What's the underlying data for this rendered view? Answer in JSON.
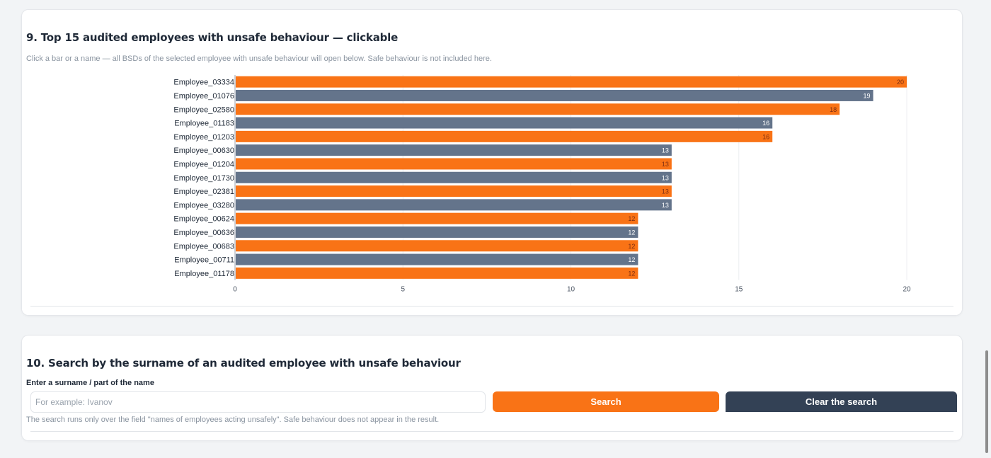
{
  "section9": {
    "title": "9. Top 15 audited employees with unsafe behaviour — clickable",
    "subtitle": "Click a bar or a name — all BSDs of the selected employee with unsafe behaviour will open below. Safe behaviour is not included here."
  },
  "colors": {
    "orange": "#f97316",
    "slate": "#64748b",
    "dark": "#334155"
  },
  "chart_data": {
    "type": "bar",
    "orientation": "horizontal",
    "title": "",
    "xlabel": "",
    "ylabel": "",
    "xlim": [
      0,
      20
    ],
    "xticks": [
      0,
      5,
      10,
      15,
      20
    ],
    "grid": true,
    "categories": [
      "Employee_03334",
      "Employee_01076",
      "Employee_02580",
      "Employee_01183",
      "Employee_01203",
      "Employee_00630",
      "Employee_01204",
      "Employee_01730",
      "Employee_02381",
      "Employee_03280",
      "Employee_00624",
      "Employee_00636",
      "Employee_00683",
      "Employee_00711",
      "Employee_01178"
    ],
    "values": [
      20,
      19,
      18,
      16,
      16,
      13,
      13,
      13,
      13,
      13,
      12,
      12,
      12,
      12,
      12
    ],
    "bar_colors": [
      "#f97316",
      "#64748b",
      "#f97316",
      "#64748b",
      "#f97316",
      "#64748b",
      "#f97316",
      "#64748b",
      "#f97316",
      "#64748b",
      "#f97316",
      "#64748b",
      "#f97316",
      "#64748b",
      "#f97316"
    ]
  },
  "section10": {
    "title": "10. Search by the surname of an audited employee with unsafe behaviour",
    "field_label": "Enter a surname / part of the name",
    "placeholder": "For example: Ivanov",
    "value": "",
    "search_label": "Search",
    "clear_label": "Clear the search",
    "hint": "The search runs only over the field \"names of employees acting unsafely\". Safe behaviour does not appear in the result."
  }
}
